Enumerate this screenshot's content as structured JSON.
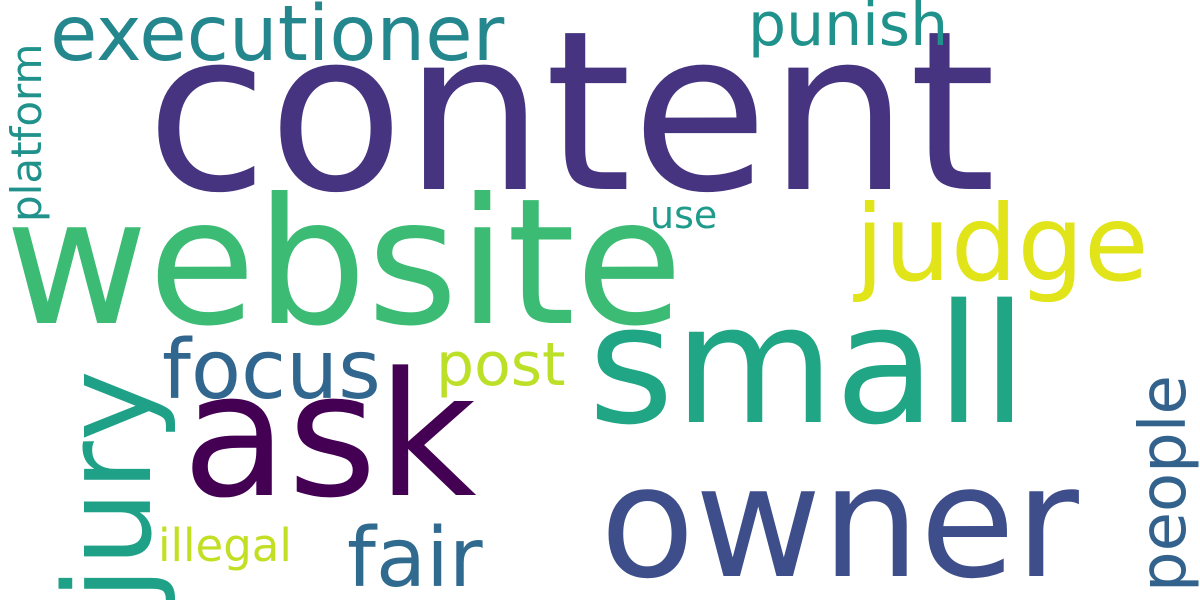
{
  "words": {
    "content": "content",
    "website": "website",
    "small": "small",
    "owner": "owner",
    "ask": "ask",
    "executioner": "executioner",
    "judge": "judge",
    "jury": "jury",
    "focus": "focus",
    "post": "post",
    "punish": "punish",
    "use": "use",
    "fair": "fair",
    "illegal": "illegal",
    "people": "people",
    "platform": "platform"
  },
  "colors": {
    "content": "#463480",
    "website": "#3cbb75",
    "small": "#21a685",
    "owner": "#3d4e8a",
    "ask": "#440154",
    "executioner": "#24878e",
    "judge": "#e1e419",
    "jury": "#1fa187",
    "focus": "#31668e",
    "post": "#bcdf27",
    "punish": "#20928c",
    "use": "#1e9b8a",
    "fair": "#306a8e",
    "illegal": "#c2df23",
    "people": "#33638d",
    "platform": "#21918c",
    "background": "#ffffff"
  }
}
